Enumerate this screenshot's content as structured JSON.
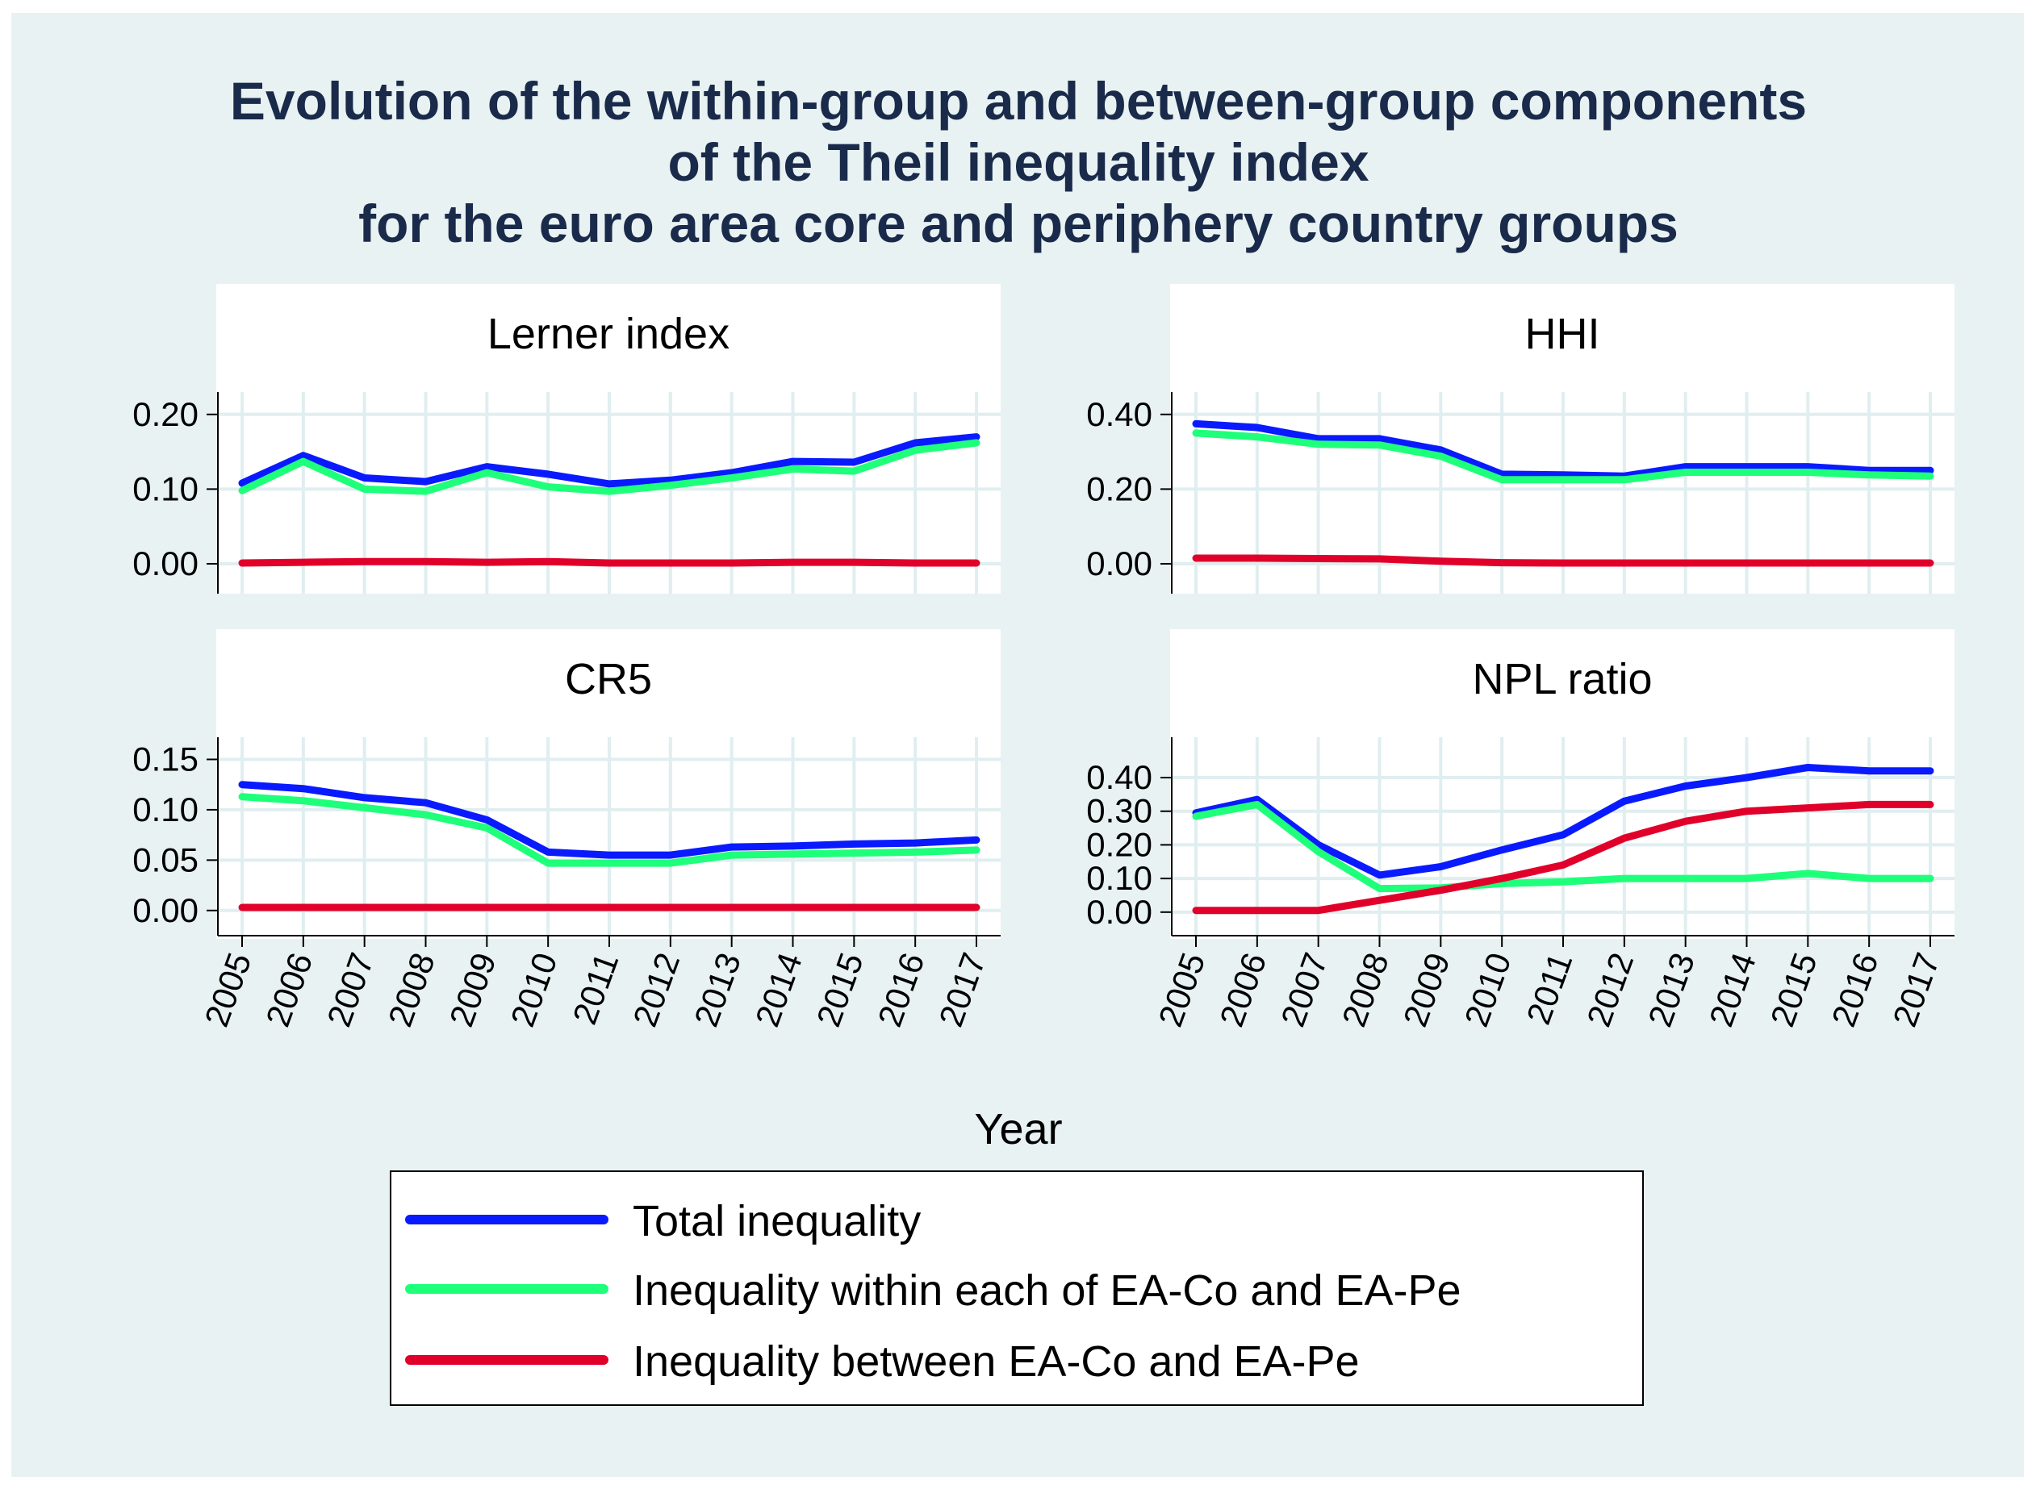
{
  "title_lines": [
    "Evolution of the within-group and between-group components",
    "of the Theil inequality index",
    "for the euro area core and periphery country groups"
  ],
  "xlabel": "Year",
  "colors": {
    "outer_bg": "#e8f2f2",
    "plot_bg": "#ffffff",
    "grid": "#e0eef0",
    "title": "#1a2a4a",
    "total": "#0a1aff",
    "within": "#1eff7a",
    "between": "#e0002a"
  },
  "legend": [
    {
      "label": "Total inequality",
      "color": "#0a1aff"
    },
    {
      "label": "Inequality within each of EA-Co and EA-Pe",
      "color": "#1eff7a"
    },
    {
      "label": "Inequality between EA-Co and EA-Pe",
      "color": "#e0002a"
    }
  ],
  "chart_data": [
    {
      "type": "line",
      "title": "Lerner index",
      "x": [
        2005,
        2006,
        2007,
        2008,
        2009,
        2010,
        2011,
        2012,
        2013,
        2014,
        2015,
        2016,
        2017
      ],
      "yticks": [
        "0.00",
        "0.10",
        "0.20"
      ],
      "ytick_values": [
        0,
        0.1,
        0.2
      ],
      "ylim": [
        -0.04,
        0.23
      ],
      "series": [
        {
          "name": "Total inequality",
          "values": [
            0.108,
            0.145,
            0.115,
            0.11,
            0.13,
            0.12,
            0.107,
            0.112,
            0.122,
            0.137,
            0.136,
            0.162,
            0.17
          ]
        },
        {
          "name": "Inequality within each of EA-Co and EA-Pe",
          "values": [
            0.098,
            0.137,
            0.1,
            0.097,
            0.122,
            0.103,
            0.097,
            0.105,
            0.115,
            0.127,
            0.124,
            0.152,
            0.162
          ]
        },
        {
          "name": "Inequality between EA-Co and EA-Pe",
          "values": [
            0.001,
            0.002,
            0.003,
            0.003,
            0.002,
            0.003,
            0.001,
            0.001,
            0.001,
            0.002,
            0.002,
            0.001,
            0.001
          ]
        }
      ]
    },
    {
      "type": "line",
      "title": "HHI",
      "x": [
        2005,
        2006,
        2007,
        2008,
        2009,
        2010,
        2011,
        2012,
        2013,
        2014,
        2015,
        2016,
        2017
      ],
      "yticks": [
        "0.00",
        "0.20",
        "0.40"
      ],
      "ytick_values": [
        0,
        0.2,
        0.4
      ],
      "ylim": [
        -0.08,
        0.46
      ],
      "series": [
        {
          "name": "Total inequality",
          "values": [
            0.375,
            0.365,
            0.335,
            0.335,
            0.305,
            0.24,
            0.238,
            0.235,
            0.26,
            0.26,
            0.26,
            0.25,
            0.25
          ]
        },
        {
          "name": "Inequality within each of EA-Co and EA-Pe",
          "values": [
            0.35,
            0.34,
            0.32,
            0.318,
            0.288,
            0.225,
            0.225,
            0.225,
            0.245,
            0.245,
            0.245,
            0.238,
            0.235
          ]
        },
        {
          "name": "Inequality between EA-Co and EA-Pe",
          "values": [
            0.015,
            0.015,
            0.014,
            0.013,
            0.007,
            0.003,
            0.002,
            0.002,
            0.002,
            0.002,
            0.002,
            0.002,
            0.002
          ]
        }
      ]
    },
    {
      "type": "line",
      "title": "CR5",
      "x": [
        2005,
        2006,
        2007,
        2008,
        2009,
        2010,
        2011,
        2012,
        2013,
        2014,
        2015,
        2016,
        2017
      ],
      "xticks": [
        "2005",
        "2006",
        "2007",
        "2008",
        "2009",
        "2010",
        "2011",
        "2012",
        "2013",
        "2014",
        "2015",
        "2016",
        "2017"
      ],
      "yticks": [
        "0.00",
        "0.05",
        "0.10",
        "0.15"
      ],
      "ytick_values": [
        0,
        0.05,
        0.1,
        0.15
      ],
      "ylim": [
        -0.025,
        0.172
      ],
      "series": [
        {
          "name": "Total inequality",
          "values": [
            0.125,
            0.121,
            0.112,
            0.107,
            0.09,
            0.058,
            0.055,
            0.055,
            0.063,
            0.064,
            0.066,
            0.067,
            0.07
          ]
        },
        {
          "name": "Inequality within each of EA-Co and EA-Pe",
          "values": [
            0.113,
            0.109,
            0.102,
            0.095,
            0.082,
            0.047,
            0.047,
            0.047,
            0.055,
            0.056,
            0.057,
            0.058,
            0.06
          ]
        },
        {
          "name": "Inequality between EA-Co and EA-Pe",
          "values": [
            0.003,
            0.003,
            0.003,
            0.003,
            0.003,
            0.003,
            0.003,
            0.003,
            0.003,
            0.003,
            0.003,
            0.003,
            0.003
          ]
        }
      ]
    },
    {
      "type": "line",
      "title": "NPL ratio",
      "x": [
        2005,
        2006,
        2007,
        2008,
        2009,
        2010,
        2011,
        2012,
        2013,
        2014,
        2015,
        2016,
        2017
      ],
      "xticks": [
        "2005",
        "2006",
        "2007",
        "2008",
        "2009",
        "2010",
        "2011",
        "2012",
        "2013",
        "2014",
        "2015",
        "2016",
        "2017"
      ],
      "yticks": [
        "0.00",
        "0.10",
        "0.20",
        "0.30",
        "0.40"
      ],
      "ytick_values": [
        0,
        0.1,
        0.2,
        0.3,
        0.4
      ],
      "ylim": [
        -0.07,
        0.52
      ],
      "series": [
        {
          "name": "Total inequality",
          "values": [
            0.295,
            0.335,
            0.2,
            0.11,
            0.135,
            0.185,
            0.23,
            0.33,
            0.375,
            0.4,
            0.43,
            0.42,
            0.42
          ]
        },
        {
          "name": "Inequality within each of EA-Co and EA-Pe",
          "values": [
            0.285,
            0.32,
            0.18,
            0.07,
            0.072,
            0.085,
            0.09,
            0.1,
            0.1,
            0.1,
            0.115,
            0.1,
            0.1
          ]
        },
        {
          "name": "Inequality between EA-Co and EA-Pe",
          "values": [
            0.005,
            0.005,
            0.005,
            0.035,
            0.065,
            0.1,
            0.14,
            0.22,
            0.27,
            0.3,
            0.31,
            0.32,
            0.32
          ]
        }
      ]
    }
  ]
}
